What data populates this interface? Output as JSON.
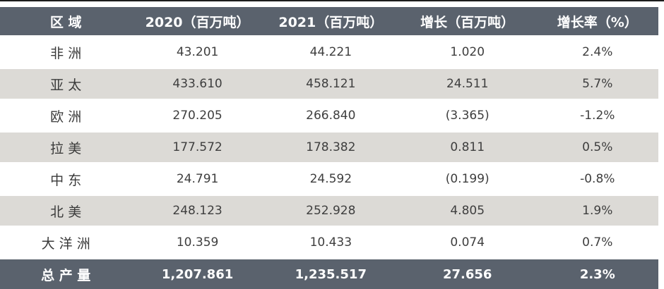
{
  "colors": {
    "header_bg": "#5a626d",
    "total_row_bg": "#5a626d",
    "stripe_row_bg": "#dcdad6",
    "plain_row_bg": "#ffffff",
    "header_text": "#ffffff",
    "body_text": "#3e3e3e",
    "top_rule": "#1c1c1c"
  },
  "chart_data": {
    "type": "table",
    "columns": [
      "区 域",
      "2020（百万吨）",
      "2021（百万吨）",
      "增长（百万吨）",
      "增长率（%）"
    ],
    "rows": [
      [
        "非 洲",
        "43.201",
        "44.221",
        "1.020",
        "2.4%"
      ],
      [
        "亚 太",
        "433.610",
        "458.121",
        "24.511",
        "5.7%"
      ],
      [
        "欧 洲",
        "270.205",
        "266.840",
        "(3.365)",
        "-1.2%"
      ],
      [
        "拉 美",
        "177.572",
        "178.382",
        "0.811",
        "0.5%"
      ],
      [
        "中 东",
        "24.791",
        "24.592",
        "(0.199)",
        "-0.8%"
      ],
      [
        "北 美",
        "248.123",
        "252.928",
        "4.805",
        "1.9%"
      ],
      [
        "大 洋 洲",
        "10.359",
        "10.433",
        "0.074",
        "0.7%"
      ]
    ],
    "total_row": [
      "总 产 量",
      "1,207.861",
      "1,235.517",
      "27.656",
      "2.3%"
    ]
  }
}
